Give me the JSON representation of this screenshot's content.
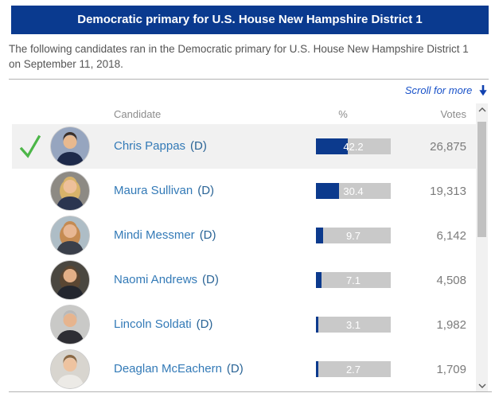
{
  "header": {
    "title": "Democratic primary for U.S. House New Hampshire District 1"
  },
  "description": "The following candidates ran in the Democratic primary for U.S. House New Hampshire District 1 on September 11, 2018.",
  "scroll_note": {
    "label": "Scroll for more"
  },
  "table": {
    "columns": {
      "candidate": "Candidate",
      "percent": "%",
      "votes": "Votes"
    },
    "rows": [
      {
        "name": "Chris Pappas",
        "party": "(D)",
        "percent": 42.2,
        "votes": "26,875",
        "winner": true,
        "avatar": {
          "bg": "#96a5bf",
          "hair": "#3a2e28",
          "skin": "#e8b98f",
          "shirt": "#1e2a4a",
          "long_hair": false
        }
      },
      {
        "name": "Maura Sullivan",
        "party": "(D)",
        "percent": 30.4,
        "votes": "19,313",
        "winner": false,
        "avatar": {
          "bg": "#8d8a84",
          "hair": "#d8b36a",
          "skin": "#eec09a",
          "shirt": "#2b3550",
          "long_hair": true
        }
      },
      {
        "name": "Mindi Messmer",
        "party": "(D)",
        "percent": 9.7,
        "votes": "6,142",
        "winner": false,
        "avatar": {
          "bg": "#aebdc6",
          "hair": "#c58b52",
          "skin": "#e8b793",
          "shirt": "#3a3f4a",
          "long_hair": true
        }
      },
      {
        "name": "Naomi Andrews",
        "party": "(D)",
        "percent": 7.1,
        "votes": "4,508",
        "winner": false,
        "avatar": {
          "bg": "#4a4740",
          "hair": "#5a4632",
          "skin": "#e3af87",
          "shirt": "#23262e",
          "long_hair": true
        }
      },
      {
        "name": "Lincoln Soldati",
        "party": "(D)",
        "percent": 3.1,
        "votes": "1,982",
        "winner": false,
        "avatar": {
          "bg": "#c9c9c7",
          "hair": "#b9b9b9",
          "skin": "#e6b48e",
          "shirt": "#2e2e34",
          "long_hair": false
        }
      },
      {
        "name": "Deaglan McEachern",
        "party": "(D)",
        "percent": 2.7,
        "votes": "1,709",
        "winner": false,
        "avatar": {
          "bg": "#d8d5cf",
          "hair": "#8a6844",
          "skin": "#eec3a0",
          "shirt": "#eceae6",
          "long_hair": false
        }
      }
    ]
  },
  "colors": {
    "header_bg": "#0a3a8f",
    "bar_fill": "#0c3a8d",
    "bar_track": "#c9c9c9",
    "winner_row_bg": "#f1f1f1",
    "name_link": "#337ab7",
    "party_text": "#2a6496",
    "check_green": "#4cb648",
    "scroll_link": "#1952c9",
    "votes_text": "#7b7b7b",
    "column_header_text": "#8c8c8c",
    "description_text": "#555555"
  },
  "icons": {
    "winner_check": "green-checkmark",
    "scroll_arrow": "down-arrow",
    "scrollbar_up": "chevron-up",
    "scrollbar_down": "chevron-down"
  }
}
